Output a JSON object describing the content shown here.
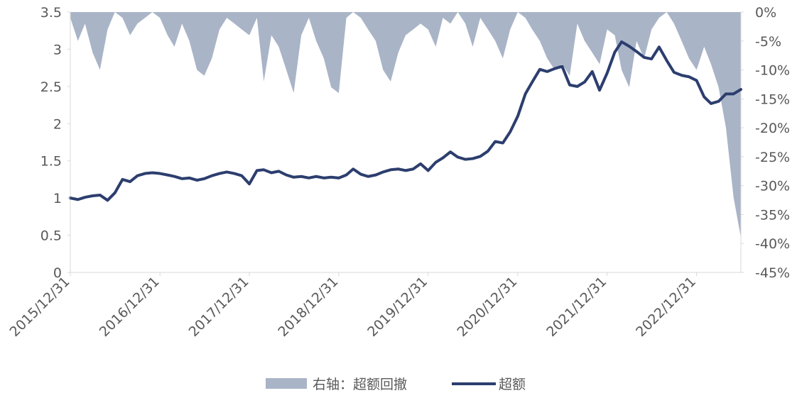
{
  "chart_data": {
    "type": "line",
    "title": "",
    "xlabel": "",
    "ylabel": "",
    "x_tick_labels": [
      "2015/12/31",
      "2016/12/31",
      "2017/12/31",
      "2018/12/31",
      "2019/12/31",
      "2020/12/31",
      "2021/12/31",
      "2022/12/31"
    ],
    "x_range": [
      "2015/12/31",
      "2023/06/30"
    ],
    "left_axis": {
      "ylim": [
        0,
        3.5
      ],
      "tick_labels": [
        "0",
        "0.5",
        "1",
        "1.5",
        "2",
        "2.5",
        "3",
        "3.5"
      ],
      "tick_values": [
        0,
        0.5,
        1,
        1.5,
        2,
        2.5,
        3,
        3.5
      ]
    },
    "right_axis": {
      "ylim": [
        -0.45,
        0
      ],
      "tick_labels": [
        "0%",
        "-5%",
        "-10%",
        "-15%",
        "-20%",
        "-25%",
        "-30%",
        "-35%",
        "-40%",
        "-45%"
      ],
      "tick_values": [
        0,
        -0.05,
        -0.1,
        -0.15,
        -0.2,
        -0.25,
        -0.3,
        -0.35,
        -0.4,
        -0.45
      ]
    },
    "grid": false,
    "legend_position": "bottom",
    "colors": {
      "drawdown": "#a9b4c7",
      "excess": "#2c3e6e",
      "axis": "#d9d9d9",
      "text": "#595959"
    },
    "series": [
      {
        "name": "右轴：超额回撤",
        "type": "area",
        "axis": "right",
        "x": [
          "2015/12/31",
          "2016/01/31",
          "2016/02/29",
          "2016/03/31",
          "2016/04/30",
          "2016/05/31",
          "2016/06/30",
          "2016/07/31",
          "2016/08/31",
          "2016/09/30",
          "2016/10/31",
          "2016/11/30",
          "2016/12/31",
          "2017/01/31",
          "2017/02/28",
          "2017/03/31",
          "2017/04/30",
          "2017/05/31",
          "2017/06/30",
          "2017/07/31",
          "2017/08/31",
          "2017/09/30",
          "2017/10/31",
          "2017/11/30",
          "2017/12/31",
          "2018/01/31",
          "2018/02/28",
          "2018/03/31",
          "2018/04/30",
          "2018/05/31",
          "2018/06/30",
          "2018/07/31",
          "2018/08/31",
          "2018/09/30",
          "2018/10/31",
          "2018/11/30",
          "2018/12/31",
          "2019/01/31",
          "2019/02/28",
          "2019/03/31",
          "2019/04/30",
          "2019/05/31",
          "2019/06/30",
          "2019/07/31",
          "2019/08/31",
          "2019/09/30",
          "2019/10/31",
          "2019/11/30",
          "2019/12/31",
          "2020/01/31",
          "2020/02/29",
          "2020/03/31",
          "2020/04/30",
          "2020/05/31",
          "2020/06/30",
          "2020/07/31",
          "2020/08/31",
          "2020/09/30",
          "2020/10/31",
          "2020/11/30",
          "2020/12/31",
          "2021/01/31",
          "2021/02/28",
          "2021/03/31",
          "2021/04/30",
          "2021/05/31",
          "2021/06/30",
          "2021/07/31",
          "2021/08/31",
          "2021/09/30",
          "2021/10/31",
          "2021/11/30",
          "2021/12/31",
          "2022/01/31",
          "2022/02/28",
          "2022/03/31",
          "2022/04/30",
          "2022/05/31",
          "2022/06/30",
          "2022/07/31",
          "2022/08/31",
          "2022/09/30",
          "2022/10/31",
          "2022/11/30",
          "2022/12/31",
          "2023/01/31",
          "2023/02/28",
          "2023/03/31",
          "2023/04/30",
          "2023/05/31",
          "2023/06/30"
        ],
        "values": [
          -0.01,
          -0.05,
          -0.02,
          -0.07,
          -0.1,
          -0.03,
          0.0,
          -0.01,
          -0.04,
          -0.02,
          -0.01,
          0.0,
          -0.01,
          -0.04,
          -0.06,
          -0.02,
          -0.05,
          -0.1,
          -0.11,
          -0.08,
          -0.03,
          -0.01,
          -0.02,
          -0.03,
          -0.04,
          -0.01,
          -0.12,
          -0.04,
          -0.06,
          -0.1,
          -0.14,
          -0.04,
          -0.01,
          -0.05,
          -0.08,
          -0.13,
          -0.14,
          -0.01,
          0.0,
          -0.01,
          -0.03,
          -0.05,
          -0.1,
          -0.12,
          -0.07,
          -0.04,
          -0.03,
          -0.02,
          -0.03,
          -0.06,
          -0.01,
          -0.02,
          0.0,
          -0.02,
          -0.06,
          -0.01,
          -0.03,
          -0.05,
          -0.08,
          -0.03,
          0.0,
          -0.01,
          -0.03,
          -0.05,
          -0.08,
          -0.1,
          -0.09,
          -0.11,
          -0.02,
          -0.05,
          -0.07,
          -0.09,
          -0.03,
          -0.04,
          -0.1,
          -0.13,
          -0.05,
          -0.08,
          -0.03,
          -0.01,
          0.0,
          -0.02,
          -0.05,
          -0.08,
          -0.1,
          -0.06,
          -0.09,
          -0.13,
          -0.2,
          -0.32,
          -0.39
        ]
      },
      {
        "name": "超额",
        "type": "line",
        "axis": "left",
        "x": [
          "2015/12/31",
          "2016/01/31",
          "2016/02/29",
          "2016/03/31",
          "2016/04/30",
          "2016/05/31",
          "2016/06/30",
          "2016/07/31",
          "2016/08/31",
          "2016/09/30",
          "2016/10/31",
          "2016/11/30",
          "2016/12/31",
          "2017/01/31",
          "2017/02/28",
          "2017/03/31",
          "2017/04/30",
          "2017/05/31",
          "2017/06/30",
          "2017/07/31",
          "2017/08/31",
          "2017/09/30",
          "2017/10/31",
          "2017/11/30",
          "2017/12/31",
          "2018/01/31",
          "2018/02/28",
          "2018/03/31",
          "2018/04/30",
          "2018/05/31",
          "2018/06/30",
          "2018/07/31",
          "2018/08/31",
          "2018/09/30",
          "2018/10/31",
          "2018/11/30",
          "2018/12/31",
          "2019/01/31",
          "2019/02/28",
          "2019/03/31",
          "2019/04/30",
          "2019/05/31",
          "2019/06/30",
          "2019/07/31",
          "2019/08/31",
          "2019/09/30",
          "2019/10/31",
          "2019/11/30",
          "2019/12/31",
          "2020/01/31",
          "2020/02/29",
          "2020/03/31",
          "2020/04/30",
          "2020/05/31",
          "2020/06/30",
          "2020/07/31",
          "2020/08/31",
          "2020/09/30",
          "2020/10/31",
          "2020/11/30",
          "2020/12/31",
          "2021/01/31",
          "2021/02/28",
          "2021/03/31",
          "2021/04/30",
          "2021/05/31",
          "2021/06/30",
          "2021/07/31",
          "2021/08/31",
          "2021/09/30",
          "2021/10/31",
          "2021/11/30",
          "2021/12/31",
          "2022/01/31",
          "2022/02/28",
          "2022/03/31",
          "2022/04/30",
          "2022/05/31",
          "2022/06/30",
          "2022/07/31",
          "2022/08/31",
          "2022/09/30",
          "2022/10/31",
          "2022/11/30",
          "2022/12/31",
          "2023/01/31",
          "2023/02/28",
          "2023/03/31",
          "2023/04/30",
          "2023/05/31",
          "2023/06/30"
        ],
        "values": [
          1.0,
          0.98,
          1.01,
          1.03,
          1.04,
          0.97,
          1.07,
          1.25,
          1.22,
          1.3,
          1.33,
          1.34,
          1.33,
          1.31,
          1.29,
          1.26,
          1.27,
          1.24,
          1.26,
          1.3,
          1.33,
          1.35,
          1.33,
          1.3,
          1.19,
          1.37,
          1.38,
          1.34,
          1.36,
          1.31,
          1.28,
          1.29,
          1.27,
          1.29,
          1.27,
          1.28,
          1.27,
          1.31,
          1.39,
          1.32,
          1.29,
          1.31,
          1.35,
          1.38,
          1.39,
          1.37,
          1.39,
          1.46,
          1.37,
          1.48,
          1.54,
          1.62,
          1.55,
          1.52,
          1.53,
          1.56,
          1.63,
          1.76,
          1.74,
          1.89,
          2.1,
          2.4,
          2.56,
          2.73,
          2.7,
          2.74,
          2.77,
          2.52,
          2.5,
          2.56,
          2.7,
          2.45,
          2.68,
          2.96,
          3.1,
          3.04,
          2.97,
          2.89,
          2.87,
          3.03,
          2.85,
          2.69,
          2.65,
          2.63,
          2.58,
          2.36,
          2.27,
          2.3,
          2.4,
          2.4,
          2.46
        ]
      }
    ]
  }
}
